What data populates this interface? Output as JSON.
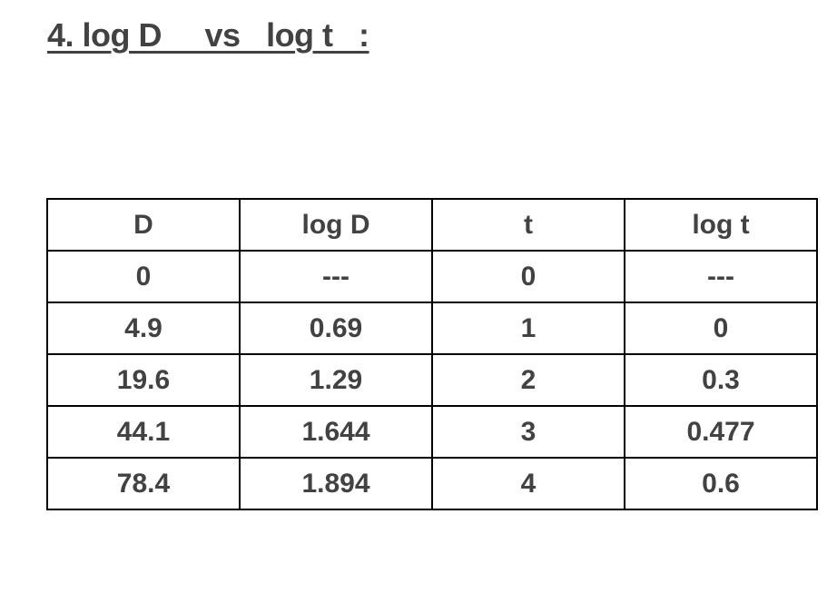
{
  "heading": "4. log D     vs   log t   :",
  "table": {
    "headers": [
      "D",
      "log D",
      "t",
      "log t"
    ],
    "rows": [
      [
        "0",
        "---",
        "0",
        "---"
      ],
      [
        "4.9",
        "0.69",
        "1",
        "0"
      ],
      [
        "19.6",
        "1.29",
        "2",
        "0.3"
      ],
      [
        "44.1",
        "1.644",
        "3",
        "0.477"
      ],
      [
        "78.4",
        "1.894",
        "4",
        "0.6"
      ]
    ]
  }
}
